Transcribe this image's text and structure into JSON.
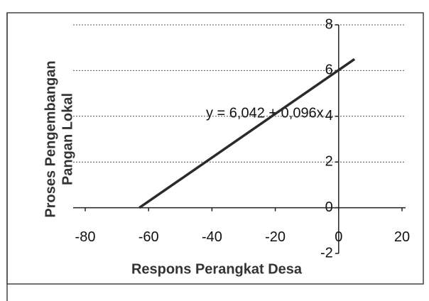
{
  "chart_data": {
    "type": "line",
    "xlabel": "Respons Perangkat Desa",
    "ylabel": [
      "Proses Pengembangan",
      "Pangan Lokal"
    ],
    "annotation": "y = 6,042 + 0,096x",
    "x": [
      -62.9,
      5
    ],
    "series": [
      {
        "name": "y = 6,042 + 0,096x",
        "color": "#2a2a2a",
        "values": [
          0,
          6.5
        ]
      }
    ],
    "xlim": [
      -80,
      20
    ],
    "xticks": [
      -80,
      -60,
      -40,
      -20,
      0,
      20
    ],
    "ylim": [
      -2,
      8
    ],
    "yticks": [
      -2,
      0,
      2,
      4,
      6,
      8
    ],
    "grid": true
  }
}
